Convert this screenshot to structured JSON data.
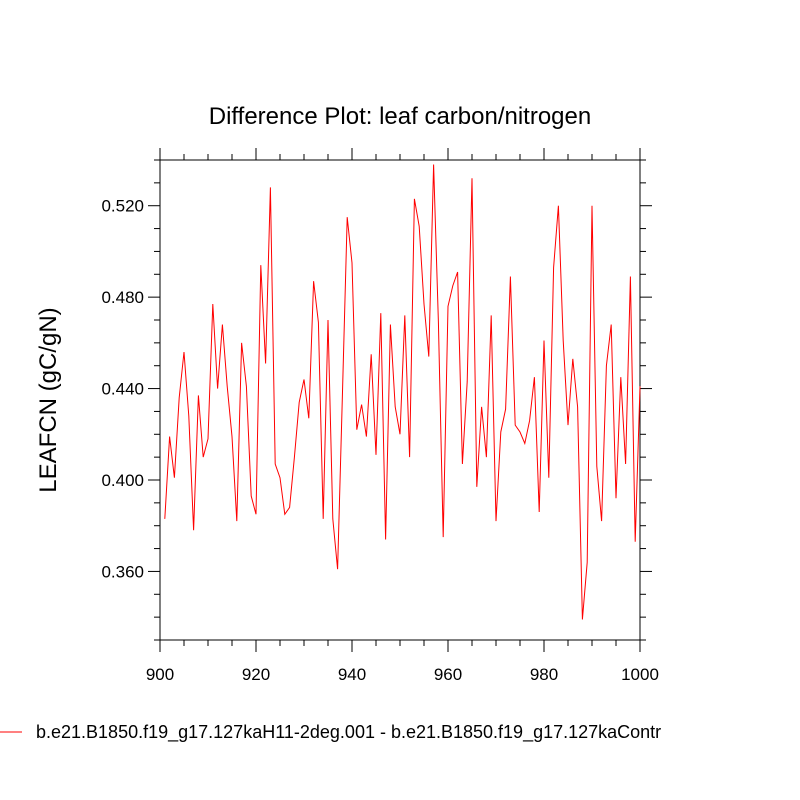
{
  "chart_data": {
    "type": "line",
    "title": "Difference Plot: leaf carbon/nitrogen",
    "xlabel": "",
    "ylabel": "LEAFCN  (gC/gN)",
    "xlim": [
      900,
      1000
    ],
    "ylim": [
      0.33,
      0.54
    ],
    "xticks": [
      900,
      920,
      940,
      960,
      980,
      1000
    ],
    "xtick_labels": [
      "900",
      "920",
      "940",
      "960",
      "980",
      "1000"
    ],
    "yticks": [
      0.36,
      0.4,
      0.44,
      0.48,
      0.52
    ],
    "ytick_labels": [
      "0.360",
      "0.400",
      "0.440",
      "0.480",
      "0.520"
    ],
    "legend_position": "bottom",
    "series": [
      {
        "name": "b.e21.B1850.f19_g17.127kaH11-2deg.001 - b.e21.B1850.f19_g17.127kaContr",
        "color": "#ff0000",
        "x": [
          901,
          902,
          903,
          904,
          905,
          906,
          907,
          908,
          909,
          910,
          911,
          912,
          913,
          914,
          915,
          916,
          917,
          918,
          919,
          920,
          921,
          922,
          923,
          924,
          925,
          926,
          927,
          928,
          929,
          930,
          931,
          932,
          933,
          934,
          935,
          936,
          937,
          938,
          939,
          940,
          941,
          942,
          943,
          944,
          945,
          946,
          947,
          948,
          949,
          950,
          951,
          952,
          953,
          954,
          955,
          956,
          957,
          958,
          959,
          960,
          961,
          962,
          963,
          964,
          965,
          966,
          967,
          968,
          969,
          970,
          971,
          972,
          973,
          974,
          975,
          976,
          977,
          978,
          979,
          980,
          981,
          982,
          983,
          984,
          985,
          986,
          987,
          988,
          989,
          990,
          991,
          992,
          993,
          994,
          995,
          996,
          997,
          998,
          999,
          1000
        ],
        "values": [
          0.383,
          0.419,
          0.401,
          0.436,
          0.456,
          0.428,
          0.378,
          0.437,
          0.41,
          0.418,
          0.477,
          0.44,
          0.468,
          0.441,
          0.419,
          0.382,
          0.46,
          0.441,
          0.393,
          0.385,
          0.494,
          0.451,
          0.528,
          0.407,
          0.401,
          0.385,
          0.388,
          0.41,
          0.434,
          0.444,
          0.427,
          0.487,
          0.469,
          0.383,
          0.47,
          0.383,
          0.361,
          0.437,
          0.515,
          0.495,
          0.422,
          0.433,
          0.419,
          0.455,
          0.411,
          0.473,
          0.374,
          0.468,
          0.432,
          0.42,
          0.472,
          0.41,
          0.523,
          0.511,
          0.477,
          0.454,
          0.538,
          0.469,
          0.375,
          0.476,
          0.485,
          0.491,
          0.407,
          0.443,
          0.532,
          0.397,
          0.432,
          0.41,
          0.472,
          0.382,
          0.421,
          0.431,
          0.489,
          0.424,
          0.421,
          0.416,
          0.426,
          0.445,
          0.386,
          0.461,
          0.401,
          0.493,
          0.52,
          0.461,
          0.424,
          0.453,
          0.432,
          0.339,
          0.364,
          0.52,
          0.406,
          0.382,
          0.45,
          0.468,
          0.392,
          0.445,
          0.407,
          0.489,
          0.373,
          0.441
        ]
      }
    ]
  }
}
